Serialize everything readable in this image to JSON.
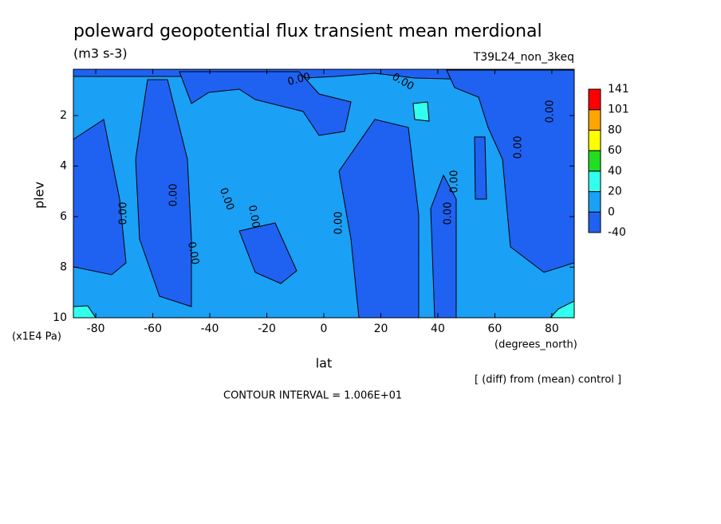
{
  "chart_data": {
    "type": "contour",
    "title": "poleward geopotential flux transient mean merdional",
    "subtitle": "(m3 s-3)",
    "annotation": "T39L24_non_3keq",
    "x_label": "lat",
    "x_units": "(degrees_north)",
    "y_label": "plev",
    "y_units": "(x1E4 Pa)",
    "xlim": [
      -87.86,
      87.86
    ],
    "xticks": [
      -80,
      -60,
      -40,
      -20,
      0,
      20,
      40,
      60,
      80
    ],
    "ylim": [
      10,
      0.17
    ],
    "yticks": [
      2,
      4,
      6,
      8,
      10
    ],
    "colorbar": {
      "levels": [
        -40,
        0,
        20,
        40,
        60,
        80,
        101,
        141
      ],
      "colors": [
        "#1f62f2",
        "#1aa0f5",
        "#33ffee",
        "#22dd22",
        "#ffff00",
        "#ffa500",
        "#ff0000"
      ]
    },
    "contour_labels": [
      "0.00",
      "0.00",
      "0.00",
      "0.00",
      "0.00",
      "0.00",
      "0.00",
      "0.00",
      "0.00",
      "0.00",
      "0.00",
      "0.00"
    ],
    "notes": [
      "[ (diff) from (mean) control ]",
      "CONTOUR INTERVAL = 1.006E+01"
    ]
  }
}
